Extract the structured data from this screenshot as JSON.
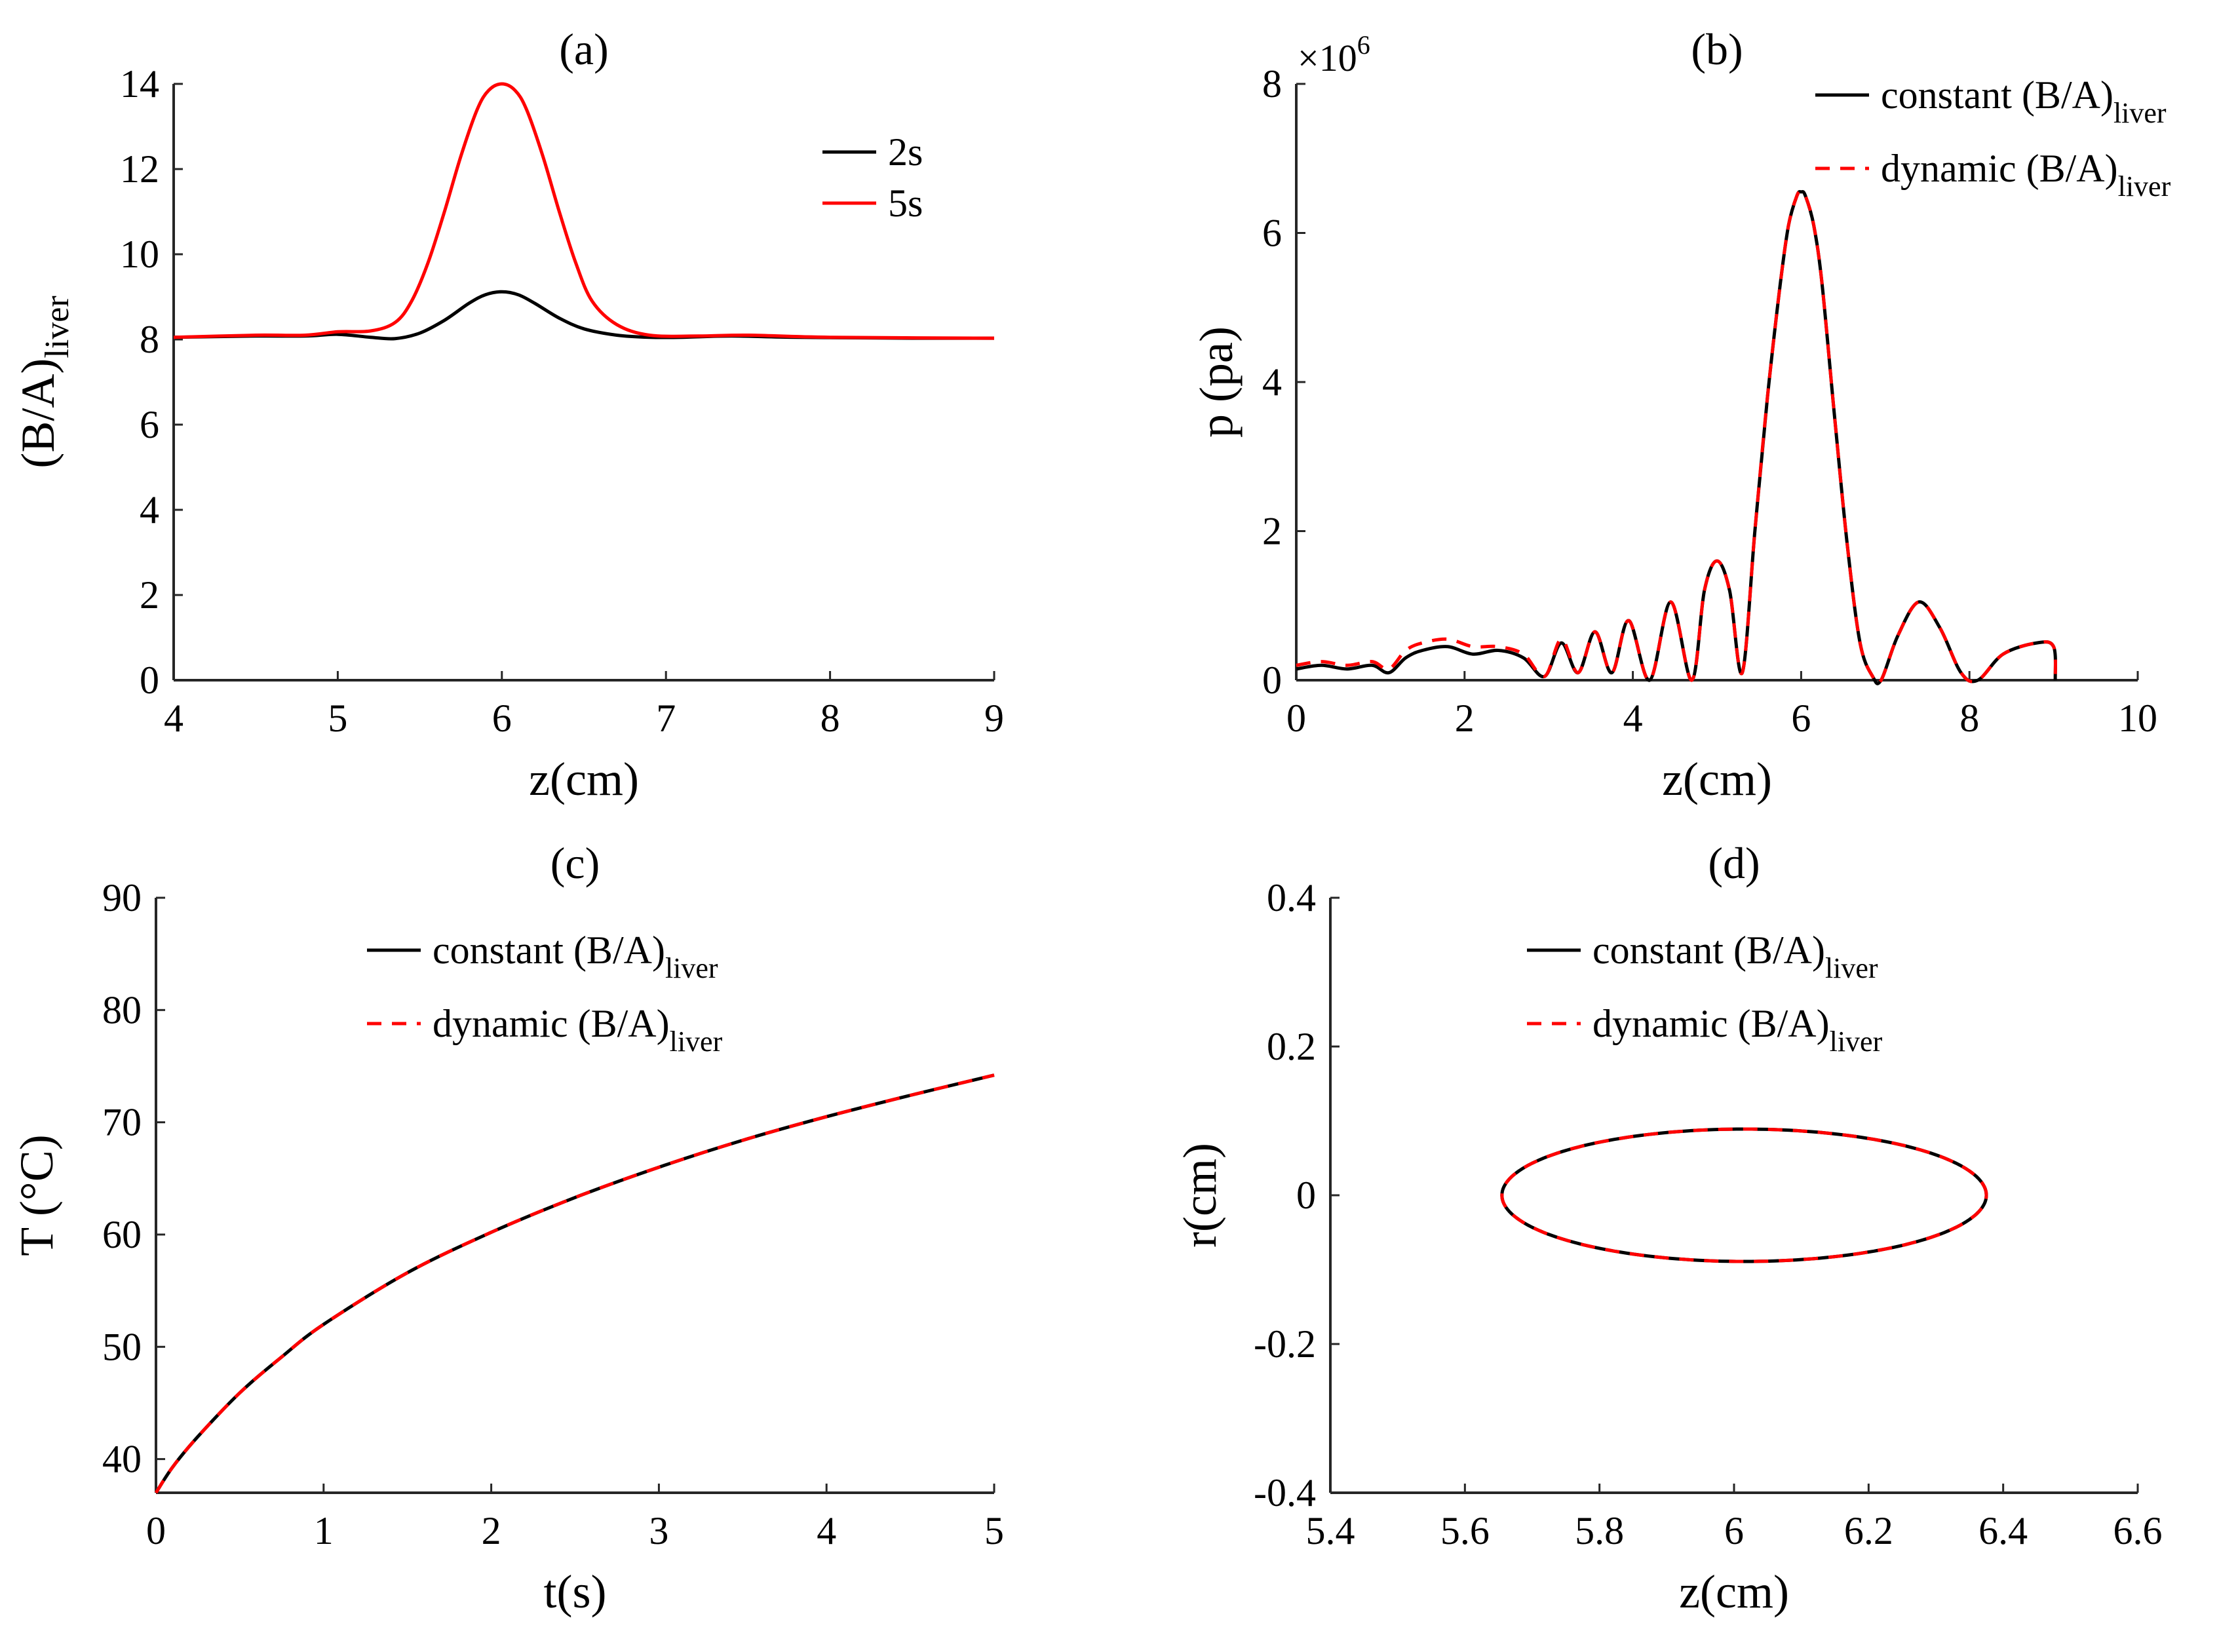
{
  "figure": {
    "panels": [
      "(a)",
      "(b)",
      "(c)",
      "(d)"
    ]
  },
  "colors": {
    "black": "#000000",
    "red": "#ff0000"
  },
  "chart_data": [
    {
      "id": "a",
      "type": "line",
      "title": "(a)",
      "xlabel": "z(cm)",
      "ylabel_main": "(B/A)",
      "ylabel_sub": "liver",
      "xlim": [
        4,
        9
      ],
      "ylim": [
        0,
        14
      ],
      "xticks": [
        4,
        5,
        6,
        7,
        8,
        9
      ],
      "yticks": [
        0,
        2,
        4,
        6,
        8,
        10,
        12,
        14
      ],
      "grid": false,
      "legend_position": "top-center",
      "series": [
        {
          "name": "2s",
          "color": "#000000",
          "style": "solid",
          "x": [
            4.0,
            4.5,
            4.8,
            5.0,
            5.2,
            5.35,
            5.5,
            5.65,
            5.8,
            5.9,
            6.0,
            6.1,
            6.2,
            6.35,
            6.5,
            6.7,
            6.9,
            7.1,
            7.4,
            7.8,
            8.5,
            9.0
          ],
          "y": [
            8.05,
            8.08,
            8.08,
            8.12,
            8.05,
            8.02,
            8.15,
            8.45,
            8.85,
            9.05,
            9.12,
            9.05,
            8.85,
            8.5,
            8.25,
            8.1,
            8.05,
            8.05,
            8.08,
            8.05,
            8.03,
            8.03
          ]
        },
        {
          "name": "5s",
          "color": "#ff0000",
          "style": "solid",
          "x": [
            4.0,
            4.5,
            4.8,
            5.0,
            5.2,
            5.35,
            5.45,
            5.55,
            5.65,
            5.75,
            5.85,
            5.92,
            6.0,
            6.08,
            6.15,
            6.25,
            6.35,
            6.45,
            6.55,
            6.7,
            6.9,
            7.2,
            7.5,
            8.0,
            9.0
          ],
          "y": [
            8.05,
            8.1,
            8.1,
            8.18,
            8.2,
            8.4,
            8.9,
            9.8,
            11.0,
            12.3,
            13.4,
            13.85,
            14.0,
            13.85,
            13.4,
            12.3,
            11.0,
            9.8,
            8.9,
            8.35,
            8.1,
            8.08,
            8.1,
            8.05,
            8.03
          ]
        }
      ],
      "legend": [
        "2s",
        "5s"
      ]
    },
    {
      "id": "b",
      "type": "line",
      "title": "(b)",
      "xlabel": "z(cm)",
      "ylabel": "p (pa)",
      "y_exponent_base": "×10",
      "y_exponent_power": "6",
      "xlim": [
        0,
        10
      ],
      "ylim": [
        0,
        8
      ],
      "xticks": [
        0,
        2,
        4,
        6,
        8,
        10
      ],
      "yticks": [
        0,
        2,
        4,
        6,
        8
      ],
      "grid": false,
      "legend_position": "top-right",
      "series": [
        {
          "name": "constant (B/A)liver",
          "color": "#000000",
          "style": "solid",
          "x": [
            0.0,
            0.3,
            0.6,
            0.9,
            1.1,
            1.3,
            1.5,
            1.8,
            2.1,
            2.4,
            2.7,
            2.95,
            3.15,
            3.35,
            3.55,
            3.75,
            3.95,
            4.2,
            4.45,
            4.7,
            4.85,
            5.0,
            5.15,
            5.3,
            5.45,
            5.6,
            5.75,
            5.85,
            5.95,
            6.0,
            6.05,
            6.15,
            6.25,
            6.4,
            6.55,
            6.7,
            6.85,
            6.95,
            7.15,
            7.4,
            7.65,
            7.9,
            8.1,
            8.4,
            8.8,
            9.0,
            9.02
          ],
          "y": [
            0.15,
            0.2,
            0.15,
            0.2,
            0.1,
            0.3,
            0.4,
            0.45,
            0.35,
            0.4,
            0.3,
            0.05,
            0.5,
            0.1,
            0.65,
            0.1,
            0.8,
            0.0,
            1.05,
            0.0,
            1.2,
            1.6,
            1.2,
            0.1,
            2.0,
            3.8,
            5.3,
            6.1,
            6.5,
            6.55,
            6.5,
            6.1,
            5.3,
            3.5,
            1.8,
            0.5,
            0.05,
            0.0,
            0.6,
            1.05,
            0.7,
            0.1,
            0.0,
            0.35,
            0.5,
            0.45,
            0.0
          ]
        },
        {
          "name": "dynamic (B/A)liver",
          "color": "#ff0000",
          "style": "dashed",
          "x": [
            0.0,
            0.3,
            0.6,
            0.9,
            1.1,
            1.3,
            1.5,
            1.8,
            2.1,
            2.4,
            2.7,
            2.95,
            3.15,
            3.35,
            3.55,
            3.75,
            3.95,
            4.2,
            4.45,
            4.7,
            4.85,
            5.0,
            5.15,
            5.3,
            5.45,
            5.6,
            5.75,
            5.85,
            5.95,
            6.0,
            6.05,
            6.15,
            6.25,
            6.4,
            6.55,
            6.7,
            6.85,
            6.95,
            7.15,
            7.4,
            7.65,
            7.9,
            8.1,
            8.4,
            8.8,
            9.0,
            9.02
          ],
          "y": [
            0.2,
            0.25,
            0.2,
            0.25,
            0.15,
            0.4,
            0.5,
            0.55,
            0.45,
            0.45,
            0.35,
            0.05,
            0.55,
            0.1,
            0.65,
            0.1,
            0.8,
            0.0,
            1.05,
            0.0,
            1.2,
            1.6,
            1.2,
            0.1,
            2.0,
            3.8,
            5.3,
            6.1,
            6.5,
            6.55,
            6.5,
            6.1,
            5.3,
            3.5,
            1.8,
            0.5,
            0.05,
            0.0,
            0.6,
            1.05,
            0.7,
            0.1,
            0.0,
            0.35,
            0.5,
            0.45,
            0.0
          ]
        }
      ],
      "legend": [
        {
          "main": "constant (B/A)",
          "sub": "liver"
        },
        {
          "main": "dynamic (B/A)",
          "sub": "liver"
        }
      ]
    },
    {
      "id": "c",
      "type": "line",
      "title": "(c)",
      "xlabel": "t(s)",
      "ylabel": "T (°C)",
      "xlim": [
        0,
        5
      ],
      "ylim": [
        37,
        90
      ],
      "xticks": [
        0,
        1,
        2,
        3,
        4,
        5
      ],
      "yticks": [
        40,
        50,
        60,
        70,
        80,
        90
      ],
      "grid": false,
      "legend_position": "top-center",
      "series": [
        {
          "name": "constant (B/A)liver",
          "color": "#000000",
          "style": "solid",
          "x": [
            0.0,
            0.1,
            0.25,
            0.5,
            0.75,
            1.0,
            1.5,
            2.0,
            2.5,
            3.0,
            3.5,
            4.0,
            4.5,
            5.0
          ],
          "y": [
            37.0,
            39.3,
            42.0,
            45.9,
            49.1,
            52.0,
            56.6,
            60.2,
            63.3,
            66.0,
            68.4,
            70.5,
            72.4,
            74.2
          ]
        },
        {
          "name": "dynamic (B/A)liver",
          "color": "#ff0000",
          "style": "dashed",
          "x": [
            0.0,
            0.1,
            0.25,
            0.5,
            0.75,
            1.0,
            1.5,
            2.0,
            2.5,
            3.0,
            3.5,
            4.0,
            4.5,
            5.0
          ],
          "y": [
            37.0,
            39.3,
            42.0,
            45.9,
            49.1,
            52.0,
            56.6,
            60.2,
            63.3,
            66.0,
            68.4,
            70.5,
            72.4,
            74.2
          ]
        }
      ],
      "legend": [
        {
          "main": "constant (B/A)",
          "sub": "liver"
        },
        {
          "main": "dynamic (B/A)",
          "sub": "liver"
        }
      ]
    },
    {
      "id": "d",
      "type": "line",
      "title": "(d)",
      "xlabel": "z(cm)",
      "ylabel": "r(cm)",
      "xlim": [
        5.4,
        6.6
      ],
      "ylim": [
        -0.4,
        0.4
      ],
      "xticks": [
        5.4,
        5.6,
        5.8,
        6.0,
        6.2,
        6.4,
        6.6
      ],
      "xticklabels": [
        "5.4",
        "5.6",
        "5.8",
        "6",
        "6.2",
        "6.4",
        "6.6"
      ],
      "yticks": [
        -0.4,
        -0.2,
        0,
        0.2,
        0.4
      ],
      "yticklabels": [
        "-0.4",
        "-0.2",
        "0",
        "0.2",
        "0.4"
      ],
      "grid": false,
      "legend_position": "top-center",
      "series": [
        {
          "name": "constant (B/A)liver",
          "color": "#000000",
          "style": "solid",
          "ellipse": {
            "center_z": 6.015,
            "center_r": 0.0,
            "half_length": 0.36,
            "half_width": 0.089
          }
        },
        {
          "name": "dynamic (B/A)liver",
          "color": "#ff0000",
          "style": "dashed",
          "ellipse": {
            "center_z": 6.015,
            "center_r": 0.0,
            "half_length": 0.36,
            "half_width": 0.089
          }
        }
      ],
      "legend": [
        {
          "main": "constant (B/A)",
          "sub": "liver"
        },
        {
          "main": "dynamic (B/A)",
          "sub": "liver"
        }
      ]
    }
  ]
}
